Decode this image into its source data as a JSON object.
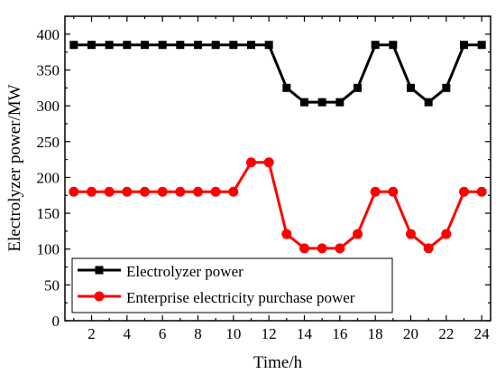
{
  "chart_data": {
    "type": "line",
    "title": "",
    "xlabel": "Time/h",
    "ylabel": "Electrolyzer power/MW",
    "xlim": [
      0.5,
      24.5
    ],
    "ylim": [
      0,
      425
    ],
    "xticks": [
      2,
      4,
      6,
      8,
      10,
      12,
      14,
      16,
      18,
      20,
      22,
      24
    ],
    "yticks": [
      0,
      50,
      100,
      150,
      200,
      250,
      300,
      350,
      400
    ],
    "grid": false,
    "legend_position": "bottom-left",
    "x": [
      1,
      2,
      3,
      4,
      5,
      6,
      7,
      8,
      9,
      10,
      11,
      12,
      13,
      14,
      15,
      16,
      17,
      18,
      19,
      20,
      21,
      22,
      23,
      24
    ],
    "series": [
      {
        "name": "Electrolyzer power",
        "color": "#000000",
        "marker": "square",
        "values": [
          385,
          385,
          385,
          385,
          385,
          385,
          385,
          385,
          385,
          385,
          385,
          385,
          325,
          305,
          305,
          305,
          325,
          385,
          385,
          325,
          305,
          325,
          385,
          385
        ]
      },
      {
        "name": "Enterprise electricity purchase power",
        "color": "#ff0000",
        "marker": "circle",
        "values": [
          180,
          180,
          180,
          180,
          180,
          180,
          180,
          180,
          180,
          180,
          221,
          221,
          121,
          101,
          101,
          101,
          121,
          180,
          180,
          121,
          101,
          121,
          180,
          180
        ]
      }
    ]
  }
}
